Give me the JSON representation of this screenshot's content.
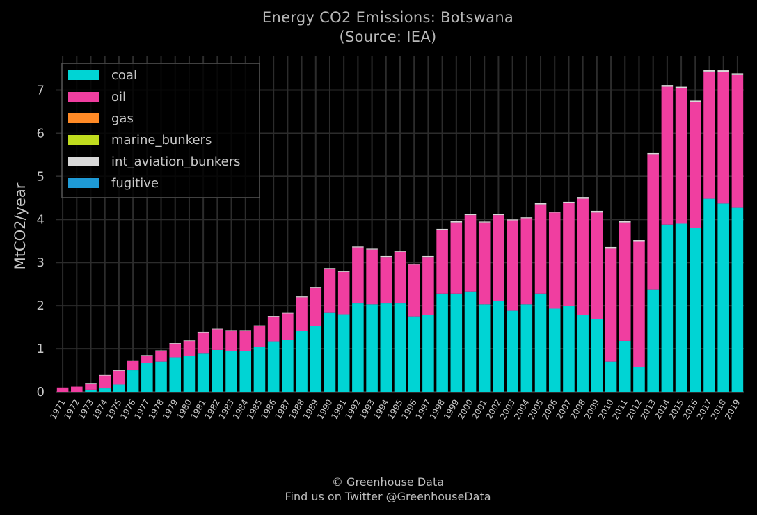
{
  "header": {
    "title": "Energy CO2 Emissions: Botswana",
    "subtitle": "(Source: IEA)"
  },
  "footer": {
    "line1": "© Greenhouse Data",
    "line2": "Find us on Twitter @GreenhouseData"
  },
  "chart_data": {
    "type": "bar",
    "stacked": true,
    "title": "Energy CO2 Emissions: Botswana",
    "subtitle": "(Source: IEA)",
    "ylabel": "MtCO2/year",
    "xlabel": "",
    "ylim": [
      0,
      7.8
    ],
    "yticks": [
      0,
      1,
      2,
      3,
      4,
      5,
      6,
      7
    ],
    "grid": true,
    "legend_position": "top-left",
    "categories": [
      "1971",
      "1972",
      "1973",
      "1974",
      "1975",
      "1976",
      "1977",
      "1978",
      "1979",
      "1980",
      "1981",
      "1982",
      "1983",
      "1984",
      "1985",
      "1986",
      "1987",
      "1988",
      "1989",
      "1990",
      "1991",
      "1992",
      "1993",
      "1994",
      "1995",
      "1996",
      "1997",
      "1998",
      "1999",
      "2000",
      "2001",
      "2002",
      "2003",
      "2004",
      "2005",
      "2006",
      "2007",
      "2008",
      "2009",
      "2010",
      "2011",
      "2012",
      "2013",
      "2014",
      "2015",
      "2016",
      "2017",
      "2018",
      "2019"
    ],
    "series": [
      {
        "name": "coal",
        "color": "#00d4d4",
        "values": [
          0.0,
          0.0,
          0.05,
          0.08,
          0.17,
          0.5,
          0.67,
          0.7,
          0.8,
          0.83,
          0.9,
          0.97,
          0.95,
          0.95,
          1.05,
          1.17,
          1.2,
          1.42,
          1.53,
          1.83,
          1.8,
          2.05,
          2.03,
          2.05,
          2.05,
          1.75,
          1.78,
          2.28,
          2.28,
          2.33,
          2.03,
          2.1,
          1.88,
          2.03,
          2.28,
          1.93,
          2.0,
          1.78,
          1.68,
          0.7,
          1.18,
          0.58,
          2.38,
          3.88,
          3.9,
          3.8,
          4.48,
          4.37,
          4.27
        ]
      },
      {
        "name": "oil",
        "color": "#f03ea0",
        "values": [
          0.1,
          0.12,
          0.13,
          0.3,
          0.32,
          0.22,
          0.17,
          0.25,
          0.32,
          0.35,
          0.48,
          0.48,
          0.47,
          0.47,
          0.48,
          0.58,
          0.62,
          0.77,
          0.88,
          1.02,
          0.98,
          1.3,
          1.27,
          1.08,
          1.2,
          1.2,
          1.35,
          1.47,
          1.65,
          1.77,
          1.9,
          2.0,
          2.1,
          2.0,
          2.07,
          2.23,
          2.38,
          2.7,
          2.48,
          2.62,
          2.75,
          2.9,
          3.12,
          3.2,
          3.15,
          2.93,
          2.95,
          3.05,
          3.08
        ]
      },
      {
        "name": "gas",
        "color": "#ff8a26",
        "values": [
          0,
          0,
          0,
          0,
          0,
          0,
          0,
          0,
          0,
          0,
          0,
          0,
          0,
          0,
          0,
          0,
          0,
          0,
          0,
          0,
          0,
          0,
          0,
          0,
          0,
          0,
          0,
          0,
          0,
          0,
          0,
          0,
          0,
          0,
          0,
          0,
          0,
          0,
          0,
          0,
          0,
          0,
          0,
          0,
          0,
          0,
          0,
          0,
          0
        ]
      },
      {
        "name": "marine_bunkers",
        "color": "#c0dc1e",
        "values": [
          0,
          0,
          0,
          0,
          0,
          0,
          0,
          0,
          0,
          0,
          0,
          0,
          0,
          0,
          0,
          0,
          0,
          0,
          0,
          0,
          0,
          0,
          0,
          0,
          0,
          0,
          0,
          0,
          0,
          0,
          0,
          0,
          0,
          0,
          0,
          0,
          0,
          0,
          0,
          0,
          0,
          0,
          0,
          0,
          0,
          0,
          0,
          0,
          0
        ]
      },
      {
        "name": "int_aviation_bunkers",
        "color": "#d9d9d9",
        "values": [
          0.0,
          0.0,
          0.01,
          0.01,
          0.01,
          0.01,
          0.01,
          0.01,
          0.01,
          0.01,
          0.01,
          0.01,
          0.01,
          0.01,
          0.01,
          0.01,
          0.01,
          0.02,
          0.02,
          0.02,
          0.02,
          0.02,
          0.02,
          0.02,
          0.02,
          0.02,
          0.02,
          0.03,
          0.03,
          0.02,
          0.02,
          0.02,
          0.02,
          0.02,
          0.03,
          0.02,
          0.03,
          0.04,
          0.04,
          0.04,
          0.04,
          0.04,
          0.04,
          0.04,
          0.03,
          0.03,
          0.04,
          0.04,
          0.04
        ]
      },
      {
        "name": "fugitive",
        "color": "#1e9ad6",
        "values": [
          0,
          0,
          0,
          0,
          0,
          0,
          0,
          0,
          0,
          0,
          0,
          0,
          0,
          0,
          0,
          0,
          0,
          0,
          0,
          0,
          0,
          0,
          0,
          0,
          0,
          0,
          0,
          0,
          0,
          0,
          0,
          0,
          0,
          0,
          0.01,
          0,
          0,
          0,
          0,
          0,
          0,
          0,
          0,
          0,
          0,
          0,
          0,
          0,
          0
        ]
      }
    ]
  }
}
